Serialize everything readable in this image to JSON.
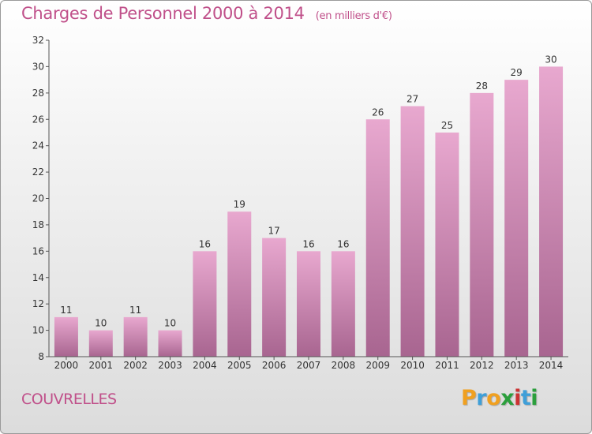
{
  "header": {
    "title": "Charges de Personnel 2000 à 2014",
    "subtitle": "(en milliers d'€)"
  },
  "footer": {
    "place": "COUVRELLES",
    "logo_letters": [
      "P",
      "r",
      "o",
      "x",
      "i",
      "t",
      "i"
    ]
  },
  "colors": {
    "title": "#c0508a",
    "bar_top": "#e8a8cf",
    "bar_bottom": "#a86590",
    "logo": [
      "#f0a020",
      "#3f9fd8",
      "#f0a020",
      "#2b9f3c",
      "#cc3333",
      "#3f9fd8",
      "#2b9f3c"
    ]
  },
  "chart_data": {
    "type": "bar",
    "title": "Charges de Personnel 2000 à 2014",
    "subtitle": "(en milliers d'€)",
    "categories": [
      "2000",
      "2001",
      "2002",
      "2003",
      "2004",
      "2005",
      "2006",
      "2007",
      "2008",
      "2009",
      "2010",
      "2011",
      "2012",
      "2013",
      "2014"
    ],
    "values": [
      11,
      10,
      11,
      10,
      16,
      19,
      17,
      16,
      16,
      26,
      27,
      25,
      28,
      29,
      30
    ],
    "ylim": [
      8,
      32
    ],
    "yticks": [
      8,
      10,
      12,
      14,
      16,
      18,
      20,
      22,
      24,
      26,
      28,
      30,
      32
    ],
    "xlabel": "",
    "ylabel": "",
    "grid": false,
    "data_labels": true
  }
}
